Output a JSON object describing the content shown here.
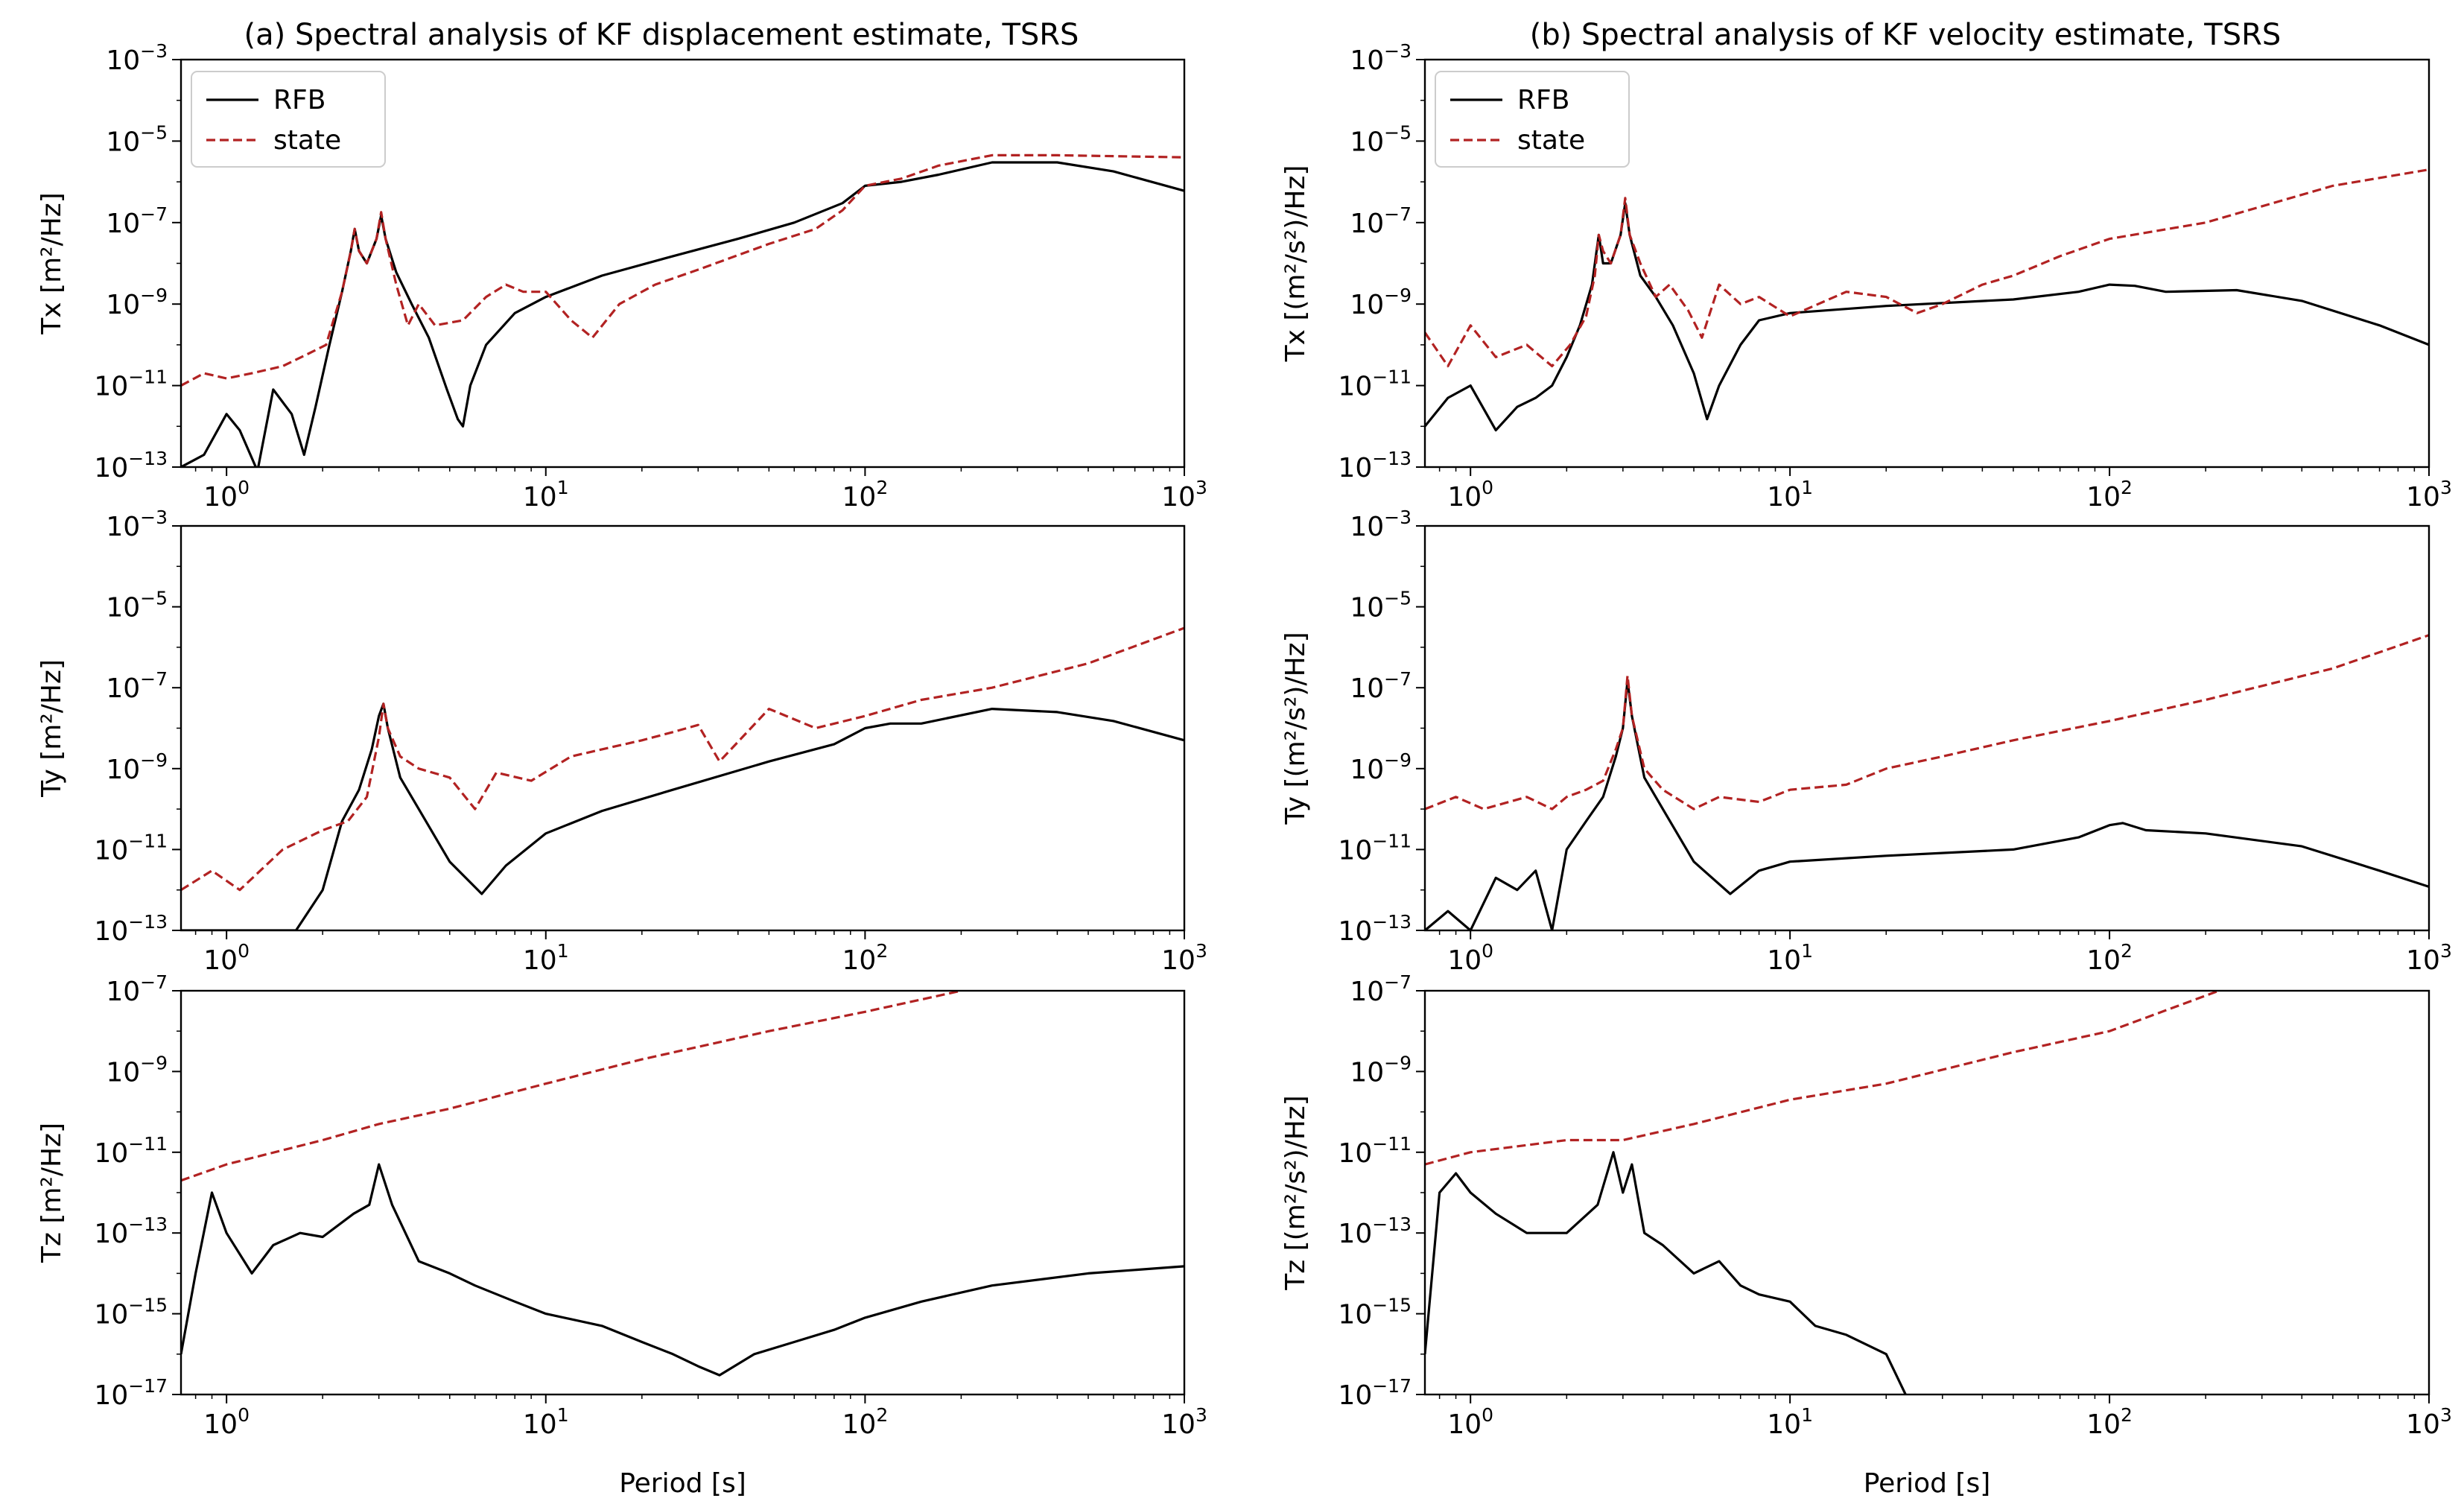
{
  "figure": {
    "columns": [
      {
        "title": "(a) Spectral analysis of KF displacement estimate, TSRS"
      },
      {
        "title": "(b) Spectral analysis of KF velocity estimate, TSRS"
      }
    ],
    "xlabel": "Period [s]",
    "legend": {
      "rfb": "RFB",
      "state": "state"
    },
    "colors": {
      "rfb": "#000000",
      "state": "#b22222"
    }
  },
  "chart_data": [
    {
      "type": "line",
      "column": 0,
      "row": 0,
      "ylabel": "Tx [m²/Hz]",
      "title": "(a) Spectral analysis of KF displacement estimate, TSRS",
      "xscale": "log",
      "yscale": "log",
      "xlim": [
        0.72,
        1000
      ],
      "ylim": [
        1e-13,
        0.001
      ],
      "xticks": [
        1,
        10,
        100,
        1000
      ],
      "yticks": [
        1e-13,
        1e-11,
        1e-09,
        1e-07,
        1e-05,
        0.001
      ],
      "legend_position": "top-left",
      "series": [
        {
          "name": "RFB",
          "style": "solid",
          "x": [
            0.72,
            0.85,
            1.0,
            1.1,
            1.25,
            1.4,
            1.6,
            1.75,
            1.9,
            2.1,
            2.3,
            2.45,
            2.52,
            2.6,
            2.75,
            2.95,
            3.05,
            3.15,
            3.4,
            3.8,
            4.3,
            4.9,
            5.3,
            5.5,
            5.8,
            6.5,
            8,
            10,
            15,
            25,
            40,
            60,
            85,
            100,
            130,
            170,
            250,
            400,
            600,
            1000
          ],
          "y": [
            1e-13,
            2e-13,
            2e-12,
            8e-13,
            8e-14,
            8e-12,
            2e-12,
            2e-13,
            3e-12,
            1e-10,
            2e-09,
            2e-08,
            7e-08,
            2e-08,
            1e-08,
            4e-08,
            1.5e-07,
            4e-08,
            6e-09,
            1e-09,
            1.5e-10,
            8e-12,
            1.5e-12,
            1e-12,
            1e-11,
            1e-10,
            6e-10,
            1.5e-09,
            5e-09,
            1.5e-08,
            4e-08,
            1e-07,
            3e-07,
            8e-07,
            1e-06,
            1.5e-06,
            3e-06,
            3e-06,
            1.8e-06,
            6e-07
          ]
        },
        {
          "name": "state",
          "style": "dashed",
          "x": [
            0.72,
            0.85,
            1.0,
            1.2,
            1.5,
            1.8,
            2.05,
            2.3,
            2.45,
            2.52,
            2.6,
            2.75,
            2.95,
            3.05,
            3.15,
            3.4,
            3.7,
            4.0,
            4.5,
            5.5,
            6.5,
            7.5,
            8.5,
            10,
            12,
            14,
            17,
            22,
            30,
            50,
            70,
            85,
            100,
            130,
            170,
            250,
            400,
            1000
          ],
          "y": [
            1e-11,
            2e-11,
            1.5e-11,
            2e-11,
            3e-11,
            6e-11,
            1e-10,
            2e-09,
            2e-08,
            7e-08,
            2e-08,
            1e-08,
            4e-08,
            1.8e-07,
            4e-08,
            3e-09,
            3e-10,
            1e-09,
            3e-10,
            4e-10,
            1.5e-09,
            3e-09,
            2e-09,
            2e-09,
            4e-10,
            1.5e-10,
            1e-09,
            3e-09,
            7e-09,
            3e-08,
            7e-08,
            2e-07,
            8e-07,
            1.2e-06,
            2.5e-06,
            4.5e-06,
            4.5e-06,
            4e-06
          ]
        }
      ]
    },
    {
      "type": "line",
      "column": 0,
      "row": 1,
      "ylabel": "Ty [m²/Hz]",
      "xscale": "log",
      "yscale": "log",
      "xlim": [
        0.72,
        1000
      ],
      "ylim": [
        1e-13,
        0.001
      ],
      "xticks": [
        1,
        10,
        100,
        1000
      ],
      "yticks": [
        1e-13,
        1e-11,
        1e-09,
        1e-07,
        1e-05,
        0.001
      ],
      "series": [
        {
          "name": "RFB",
          "style": "solid",
          "x": [
            0.72,
            1.2,
            1.45,
            1.65,
            2.0,
            2.3,
            2.6,
            2.85,
            3.0,
            3.1,
            3.2,
            3.5,
            4.0,
            5.0,
            6.3,
            7.5,
            10,
            15,
            25,
            50,
            80,
            100,
            120,
            150,
            250,
            400,
            600,
            1000
          ],
          "y": [
            1e-13,
            1e-13,
            1e-13,
            1e-13,
            1e-12,
            5e-11,
            3e-10,
            3e-09,
            2e-08,
            4e-08,
            1e-08,
            6e-10,
            1e-10,
            5e-12,
            8e-13,
            4e-12,
            2.5e-11,
            9e-11,
            3e-10,
            1.5e-09,
            4e-09,
            1e-08,
            1.3e-08,
            1.3e-08,
            3e-08,
            2.5e-08,
            1.5e-08,
            5e-09
          ]
        },
        {
          "name": "state",
          "style": "dashed",
          "x": [
            0.72,
            0.9,
            1.1,
            1.5,
            2.0,
            2.4,
            2.75,
            3.0,
            3.1,
            3.2,
            3.5,
            4.0,
            5.0,
            6.0,
            7.0,
            9.0,
            12,
            15,
            20,
            25,
            30,
            35,
            50,
            70,
            100,
            150,
            250,
            500,
            1000
          ],
          "y": [
            1e-12,
            3e-12,
            1e-12,
            1e-11,
            3e-11,
            5e-11,
            2e-10,
            6e-09,
            4e-08,
            1e-08,
            2e-09,
            1e-09,
            6e-10,
            1e-10,
            8e-10,
            5e-10,
            2e-09,
            3e-09,
            5e-09,
            8e-09,
            1.2e-08,
            1.5e-09,
            3e-08,
            1e-08,
            2e-08,
            5e-08,
            1e-07,
            4e-07,
            3e-06
          ]
        }
      ]
    },
    {
      "type": "line",
      "column": 0,
      "row": 2,
      "ylabel": "Tz [m²/Hz]",
      "xlabel": "Period [s]",
      "xscale": "log",
      "yscale": "log",
      "xlim": [
        0.72,
        1000
      ],
      "ylim": [
        1e-17,
        1e-07
      ],
      "xticks": [
        1,
        10,
        100,
        1000
      ],
      "yticks": [
        1e-17,
        1e-15,
        1e-13,
        1e-11,
        1e-09,
        1e-07
      ],
      "series": [
        {
          "name": "RFB",
          "style": "solid",
          "x": [
            0.72,
            0.8,
            0.9,
            1.0,
            1.2,
            1.4,
            1.7,
            2.0,
            2.5,
            2.8,
            3.0,
            3.3,
            4.0,
            5.0,
            6.0,
            8.0,
            10,
            15,
            20,
            25,
            30,
            35,
            45,
            60,
            80,
            100,
            150,
            250,
            500,
            1000
          ],
          "y": [
            1e-16,
            1e-14,
            1e-12,
            1e-13,
            1e-14,
            5e-14,
            1e-13,
            8e-14,
            3e-13,
            5e-13,
            5e-12,
            5e-13,
            2e-14,
            1e-14,
            5e-15,
            2e-15,
            1e-15,
            5e-16,
            2e-16,
            1e-16,
            5e-17,
            3e-17,
            1e-16,
            2e-16,
            4e-16,
            8e-16,
            2e-15,
            5e-15,
            1e-14,
            1.5e-14
          ]
        },
        {
          "name": "state",
          "style": "dashed",
          "x": [
            0.72,
            1,
            2,
            3,
            5,
            10,
            20,
            50,
            100,
            200
          ],
          "y": [
            2e-12,
            5e-12,
            2e-11,
            5e-11,
            1.2e-10,
            5e-10,
            2e-09,
            1e-08,
            3e-08,
            1e-07
          ]
        }
      ]
    },
    {
      "type": "line",
      "column": 1,
      "row": 0,
      "ylabel": "Tx [(m²/s²)/Hz]",
      "title": "(b) Spectral analysis of KF velocity estimate, TSRS",
      "xscale": "log",
      "yscale": "log",
      "xlim": [
        0.72,
        1000
      ],
      "ylim": [
        1e-13,
        0.001
      ],
      "xticks": [
        1,
        10,
        100,
        1000
      ],
      "yticks": [
        1e-13,
        1e-11,
        1e-09,
        1e-07,
        1e-05,
        0.001
      ],
      "legend_position": "top-left",
      "series": [
        {
          "name": "RFB",
          "style": "solid",
          "x": [
            0.72,
            0.85,
            1.0,
            1.2,
            1.4,
            1.6,
            1.8,
            2.0,
            2.2,
            2.4,
            2.52,
            2.6,
            2.75,
            2.95,
            3.05,
            3.15,
            3.4,
            3.8,
            4.3,
            5.0,
            5.5,
            6.0,
            7.0,
            8.0,
            10,
            20,
            50,
            80,
            100,
            120,
            150,
            250,
            400,
            700,
            1000
          ],
          "y": [
            1e-12,
            5e-12,
            1e-11,
            8e-13,
            3e-12,
            5e-12,
            1e-11,
            5e-11,
            3e-10,
            3e-09,
            5e-08,
            1e-08,
            1e-08,
            5e-08,
            3e-07,
            5e-08,
            5e-09,
            1.5e-09,
            3e-10,
            2e-11,
            1.5e-12,
            1e-11,
            1e-10,
            4e-10,
            6e-10,
            9e-10,
            1.3e-09,
            2e-09,
            3e-09,
            2.8e-09,
            2e-09,
            2.2e-09,
            1.2e-09,
            3e-10,
            1e-10
          ]
        },
        {
          "name": "state",
          "style": "dashed",
          "x": [
            0.72,
            0.85,
            1.0,
            1.2,
            1.5,
            1.8,
            2.05,
            2.3,
            2.45,
            2.52,
            2.6,
            2.75,
            2.95,
            3.05,
            3.15,
            3.4,
            3.8,
            4.2,
            4.8,
            5.3,
            6.0,
            7.0,
            8.0,
            10,
            15,
            20,
            25,
            30,
            40,
            50,
            70,
            100,
            200,
            500,
            1000
          ],
          "y": [
            2e-10,
            3e-11,
            3e-10,
            5e-11,
            1e-10,
            3e-11,
            1e-10,
            5e-10,
            5e-09,
            5e-08,
            2e-08,
            1e-08,
            5e-08,
            4e-07,
            5e-08,
            1e-08,
            1.5e-09,
            3e-09,
            7e-10,
            1.5e-10,
            3e-09,
            1e-09,
            1.5e-09,
            5e-10,
            2e-09,
            1.5e-09,
            6e-10,
            1e-09,
            3e-09,
            5e-09,
            1.5e-08,
            4e-08,
            1e-07,
            8e-07,
            2e-06
          ]
        }
      ]
    },
    {
      "type": "line",
      "column": 1,
      "row": 1,
      "ylabel": "Ty [(m²/s²)/Hz]",
      "xscale": "log",
      "yscale": "log",
      "xlim": [
        0.72,
        1000
      ],
      "ylim": [
        1e-13,
        0.001
      ],
      "xticks": [
        1,
        10,
        100,
        1000
      ],
      "yticks": [
        1e-13,
        1e-11,
        1e-09,
        1e-07,
        1e-05,
        0.001
      ],
      "series": [
        {
          "name": "RFB",
          "style": "solid",
          "x": [
            0.72,
            0.85,
            1.0,
            1.2,
            1.4,
            1.6,
            1.8,
            2.0,
            2.3,
            2.6,
            2.85,
            3.0,
            3.1,
            3.2,
            3.5,
            4.0,
            5.0,
            6.5,
            8.0,
            10,
            20,
            50,
            80,
            100,
            110,
            130,
            200,
            400,
            700,
            1000
          ],
          "y": [
            1e-13,
            3e-13,
            1e-13,
            2e-12,
            1e-12,
            3e-12,
            1e-13,
            1e-11,
            5e-11,
            2e-10,
            2e-09,
            1e-08,
            1.5e-07,
            2e-08,
            6e-10,
            1e-10,
            5e-12,
            8e-13,
            3e-12,
            5e-12,
            7e-12,
            1e-11,
            2e-11,
            4e-11,
            4.5e-11,
            3e-11,
            2.5e-11,
            1.2e-11,
            3e-12,
            1.2e-12
          ]
        },
        {
          "name": "state",
          "style": "dashed",
          "x": [
            0.72,
            0.9,
            1.1,
            1.5,
            1.8,
            2.0,
            2.3,
            2.6,
            2.85,
            3.0,
            3.1,
            3.2,
            3.5,
            4.0,
            5.0,
            6.0,
            8.0,
            10,
            15,
            20,
            30,
            50,
            100,
            200,
            500,
            1000
          ],
          "y": [
            1e-10,
            2e-10,
            1e-10,
            2e-10,
            1e-10,
            2e-10,
            3e-10,
            5e-10,
            3e-09,
            1e-08,
            2e-07,
            2e-08,
            1e-09,
            3e-10,
            1e-10,
            2e-10,
            1.5e-10,
            3e-10,
            4e-10,
            1e-09,
            2e-09,
            5e-09,
            1.5e-08,
            5e-08,
            3e-07,
            2e-06
          ]
        }
      ]
    },
    {
      "type": "line",
      "column": 1,
      "row": 2,
      "ylabel": "Tz [(m²/s²)/Hz]",
      "xlabel": "Period [s]",
      "xscale": "log",
      "yscale": "log",
      "xlim": [
        0.72,
        1000
      ],
      "ylim": [
        1e-17,
        1e-07
      ],
      "xticks": [
        1,
        10,
        100,
        1000
      ],
      "yticks": [
        1e-17,
        1e-15,
        1e-13,
        1e-11,
        1e-09,
        1e-07
      ],
      "series": [
        {
          "name": "RFB",
          "style": "solid",
          "x": [
            0.72,
            0.8,
            0.9,
            1.0,
            1.2,
            1.5,
            2.0,
            2.5,
            2.8,
            3.0,
            3.2,
            3.5,
            4.0,
            5.0,
            6.0,
            7.0,
            8.0,
            10,
            12,
            15,
            20,
            23
          ],
          "y": [
            1e-16,
            1e-12,
            3e-12,
            1e-12,
            3e-13,
            1e-13,
            1e-13,
            5e-13,
            1e-11,
            1e-12,
            5e-12,
            1e-13,
            5e-14,
            1e-14,
            2e-14,
            5e-15,
            3e-15,
            2e-15,
            5e-16,
            3e-16,
            1e-16,
            1e-17
          ]
        },
        {
          "name": "state",
          "style": "dashed",
          "x": [
            0.72,
            1,
            2,
            3,
            5,
            10,
            20,
            50,
            100,
            220
          ],
          "y": [
            5e-12,
            1e-11,
            2e-11,
            2e-11,
            5e-11,
            2e-10,
            5e-10,
            3e-09,
            1e-08,
            1e-07
          ]
        }
      ]
    }
  ]
}
